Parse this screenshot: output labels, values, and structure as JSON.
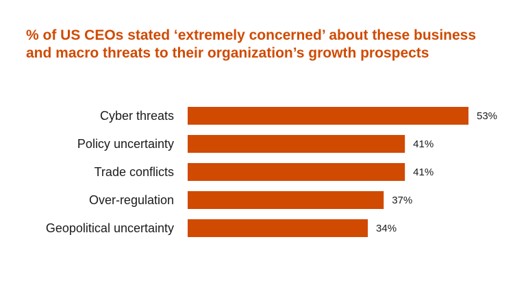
{
  "chart_data": {
    "type": "bar",
    "orientation": "horizontal",
    "title": "% of US CEOs stated ‘extremely concerned’ about these business and macro threats to their organization’s growth prospects",
    "categories": [
      "Cyber threats",
      "Policy uncertainty",
      "Trade conflicts",
      "Over-regulation",
      "Geopolitical uncertainty"
    ],
    "values": [
      53,
      41,
      41,
      37,
      34
    ],
    "value_labels": [
      "53%",
      "41%",
      "41%",
      "37%",
      "34%"
    ],
    "unit": "%",
    "xlim": [
      0,
      53
    ],
    "bar_color": "#d04a02",
    "grid": false,
    "legend": "none"
  }
}
